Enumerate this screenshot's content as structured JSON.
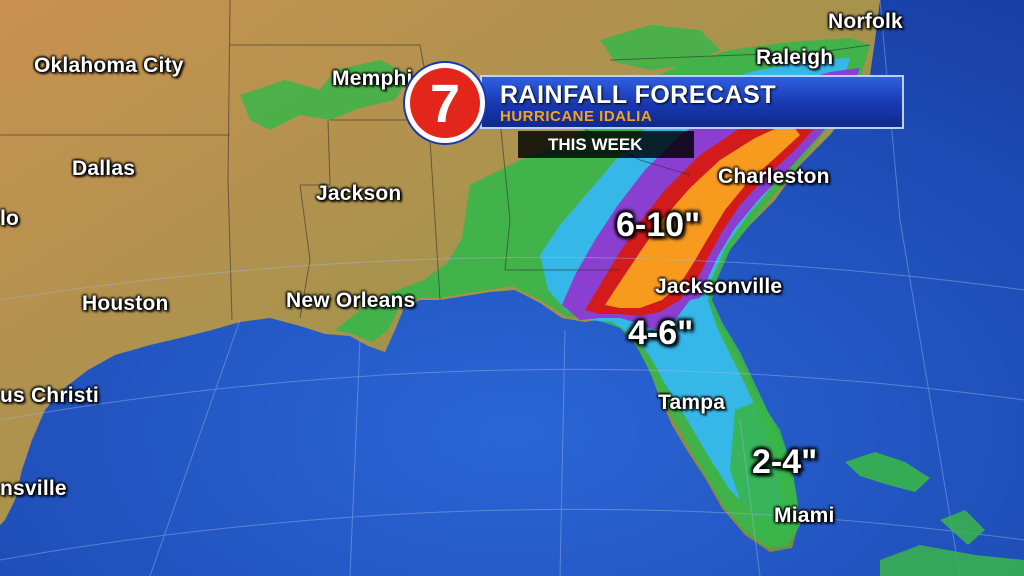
{
  "banner": {
    "title": "RAINFALL FORECAST",
    "subtitle": "HURRICANE IDALIA",
    "timeframe": "THIS WEEK",
    "logo_text": "7",
    "accent_color": "#f7a21b",
    "logo_color": "#e2261c"
  },
  "cities": [
    {
      "id": "norfolk",
      "label": "Norfolk"
    },
    {
      "id": "raleigh",
      "label": "Raleigh"
    },
    {
      "id": "oklahoma-city",
      "label": "Oklahoma City"
    },
    {
      "id": "memphis",
      "label": "Memphi"
    },
    {
      "id": "dallas",
      "label": "Dallas"
    },
    {
      "id": "jackson",
      "label": "Jackson"
    },
    {
      "id": "charleston",
      "label": "Charleston"
    },
    {
      "id": "houston",
      "label": "Houston"
    },
    {
      "id": "new-orleans",
      "label": "New Orleans"
    },
    {
      "id": "jacksonville",
      "label": "Jacksonville"
    },
    {
      "id": "corpus-christi",
      "label": "us Christi"
    },
    {
      "id": "tampa",
      "label": "Tampa"
    },
    {
      "id": "brownsville",
      "label": "nsville"
    },
    {
      "id": "miami",
      "label": "Miami"
    },
    {
      "id": "abilene",
      "label": "lo"
    }
  ],
  "rainfall_labels": [
    {
      "id": "heavy",
      "label": "6-10\""
    },
    {
      "id": "moderate",
      "label": "4-6\""
    },
    {
      "id": "light",
      "label": "2-4\""
    }
  ],
  "legend_colors": {
    "land": "#b98a4a",
    "ocean": "#1f55c4",
    "light_rain": "#39b54a",
    "moderate_rain": "#35b7e8",
    "heavy_rain": "#8a3fd1",
    "very_heavy_rain": "#d41b1b",
    "extreme_rain": "#f79a1e"
  }
}
